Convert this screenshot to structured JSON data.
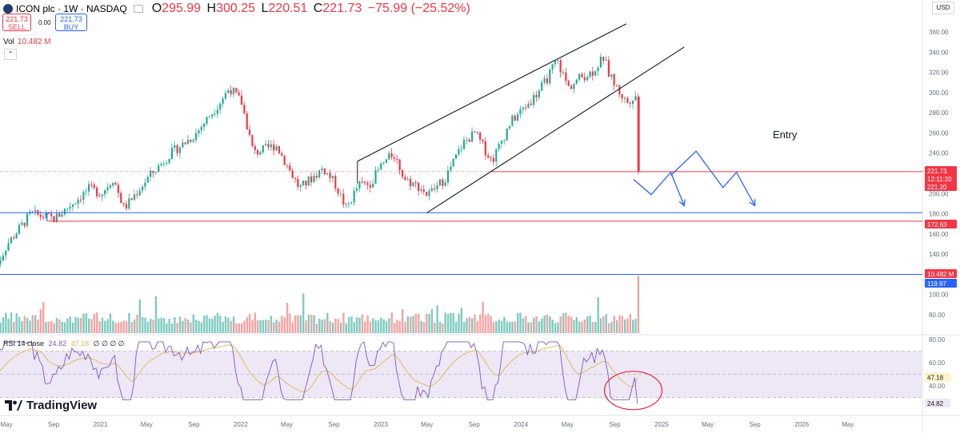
{
  "header": {
    "title": "ICON plc · 1W · NASDAQ",
    "open_label": "O",
    "open": "295.99",
    "high_label": "H",
    "high": "300.25",
    "low_label": "L",
    "low": "220.51",
    "close_label": "C",
    "close": "221.73",
    "change": "−75.99 (−25.52%)"
  },
  "quote": {
    "sell_price": "221.73",
    "sell_label": "SELL",
    "spread": "0.00",
    "buy_price": "221.73",
    "buy_label": "BUY"
  },
  "volume": {
    "label": "Vol",
    "value": "10.482 M"
  },
  "currency": "USD",
  "rsi_legend": {
    "label": "RSI 14 close",
    "rsi": "24.82",
    "ma": "47.18",
    "rest": "∅ ∅ ∅ ∅"
  },
  "brand": "TradingView",
  "colors": {
    "up": "#22ab94",
    "down": "#f23645",
    "vol_up": "#7ecbc0",
    "vol_down": "#f5a3a3",
    "blue": "#2962ff",
    "red": "#f23645",
    "rsi": "#7e57c2",
    "rsi_ma": "#e0b84a",
    "rsi_band": "#ede7f6"
  },
  "chart_data": {
    "type": "candlestick",
    "title": "ICON plc · 1W · NASDAQ",
    "price_axis": {
      "ticks": [
        80,
        100,
        120,
        140,
        160,
        180,
        200,
        220,
        240,
        260,
        280,
        300,
        320,
        340,
        360
      ],
      "range": [
        72,
        365
      ]
    },
    "time_axis": [
      "May",
      "Sep",
      "2021",
      "May",
      "Sep",
      "2022",
      "May",
      "Sep",
      "2023",
      "May",
      "Sep",
      "2024",
      "May",
      "Sep",
      "2025",
      "May",
      "Sep",
      "2026",
      "May"
    ],
    "price_path": [
      [
        "2020-03-30",
        125
      ],
      [
        "2020-05-01",
        150
      ],
      [
        "2020-07-01",
        180
      ],
      [
        "2020-09-01",
        175
      ],
      [
        "2020-10-01",
        185
      ],
      [
        "2020-12-01",
        205
      ],
      [
        "2021-01-01",
        200
      ],
      [
        "2021-02-01",
        215
      ],
      [
        "2021-03-01",
        185
      ],
      [
        "2021-05-01",
        215
      ],
      [
        "2021-07-01",
        240
      ],
      [
        "2021-09-01",
        258
      ],
      [
        "2021-11-01",
        288
      ],
      [
        "2021-12-01",
        305
      ],
      [
        "2022-01-01",
        290
      ],
      [
        "2022-02-01",
        240
      ],
      [
        "2022-04-01",
        248
      ],
      [
        "2022-06-01",
        205
      ],
      [
        "2022-08-01",
        225
      ],
      [
        "2022-09-01",
        210
      ],
      [
        "2022-10-01",
        185
      ],
      [
        "2022-11-01",
        208
      ],
      [
        "2022-12-01",
        210
      ],
      [
        "2023-01-01",
        228
      ],
      [
        "2023-02-01",
        240
      ],
      [
        "2023-03-01",
        215
      ],
      [
        "2023-04-15",
        205
      ],
      [
        "2023-05-01",
        198
      ],
      [
        "2023-06-15",
        215
      ],
      [
        "2023-08-01",
        250
      ],
      [
        "2023-09-01",
        260
      ],
      [
        "2023-10-15",
        232
      ],
      [
        "2023-12-01",
        270
      ],
      [
        "2024-02-01",
        295
      ],
      [
        "2024-03-01",
        310
      ],
      [
        "2024-04-01",
        332
      ],
      [
        "2024-04-15",
        320
      ],
      [
        "2024-05-01",
        305
      ],
      [
        "2024-06-01",
        315
      ],
      [
        "2024-07-01",
        320
      ],
      [
        "2024-08-01",
        335
      ],
      [
        "2024-08-15",
        318
      ],
      [
        "2024-09-15",
        298
      ],
      [
        "2024-10-01",
        290
      ],
      [
        "2024-10-15",
        296
      ],
      [
        "2024-10-25",
        298
      ],
      [
        "2024-11-01",
        221.73
      ]
    ],
    "current_price": 221.73,
    "price_labels": [
      {
        "text": "221.73",
        "color": "#f23645"
      },
      {
        "text": "12:11:20",
        "color": "#f23645"
      },
      {
        "text": "221.20",
        "color": "#f23645"
      },
      {
        "text": "172.63",
        "color": "#f23645"
      },
      {
        "text": "10.482 M",
        "color": "#f23645"
      },
      {
        "text": "119.97",
        "color": "#2962ff"
      }
    ],
    "levels": [
      {
        "price": 221.73,
        "color": "#f23645"
      },
      {
        "price": 181,
        "color": "#2962ff"
      },
      {
        "price": 172.63,
        "color": "#f23645"
      },
      {
        "price": 119.97,
        "color": "#2962ff"
      }
    ],
    "channel": {
      "upper": [
        [
          "2022-11-01",
          232
        ],
        [
          "2024-10-01",
          368
        ]
      ],
      "lower": [
        [
          "2023-05-01",
          181
        ],
        [
          "2025-03-01",
          345
        ]
      ]
    },
    "annotation": "Entry",
    "projection_paths": [
      [
        [
          "2024-10-20",
          214
        ],
        [
          "2024-12-05",
          199
        ],
        [
          "2025-01-25",
          221
        ],
        [
          "2025-03-01",
          188
        ]
      ],
      [
        [
          "2025-01-25",
          218
        ],
        [
          "2025-04-01",
          242
        ],
        [
          "2025-06-10",
          206
        ],
        [
          "2025-07-15",
          221
        ],
        [
          "2025-09-01",
          188
        ]
      ]
    ],
    "volume": {
      "last": "10.482 M",
      "last_bar_highlight": true
    },
    "rsi": {
      "length": 14,
      "value": 24.82,
      "ma_value": 47.18,
      "axis_ticks": [
        40,
        60,
        80
      ],
      "range": [
        20,
        80
      ],
      "band": [
        30,
        70
      ],
      "mid": 50,
      "value_labels": [
        "47.18",
        "24.82"
      ],
      "highlight_circle": true
    },
    "grid": false,
    "legend": "top-left"
  }
}
